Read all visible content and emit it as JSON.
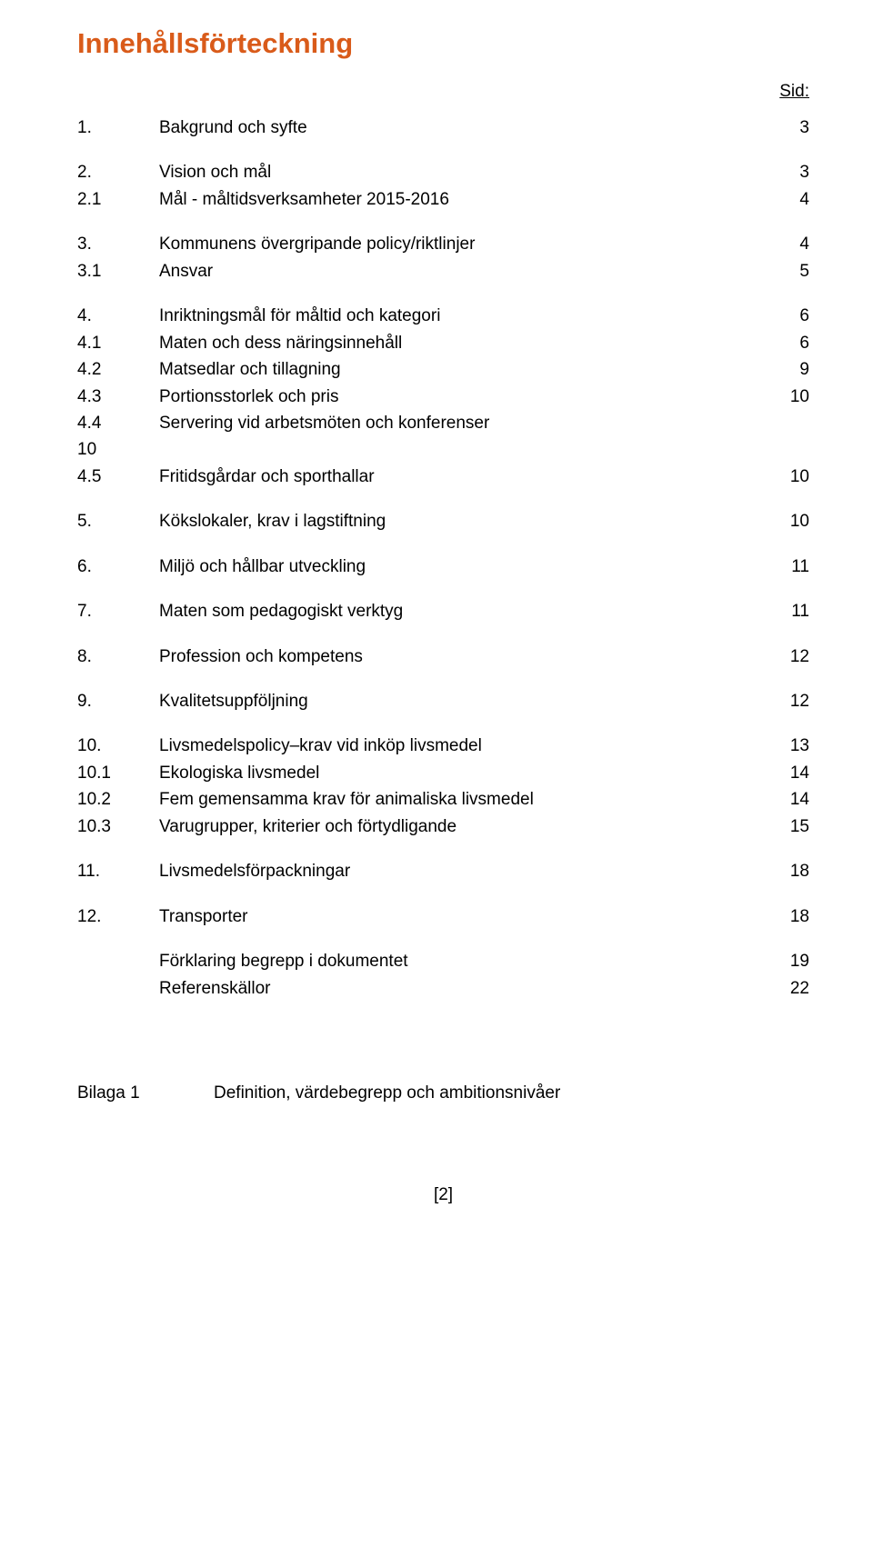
{
  "colors": {
    "accent": "#d95b1a",
    "text": "#000000",
    "background": "#ffffff"
  },
  "typography": {
    "heading_font_size_pt": 24,
    "body_font_size_pt": 14,
    "heading_weight": "bold"
  },
  "heading": "Innehållsförteckning",
  "sid_label": "Sid:",
  "toc": {
    "groups": [
      [
        {
          "num": "1.",
          "title": "Bakgrund och syfte",
          "page": "3"
        }
      ],
      [
        {
          "num": "2.",
          "title": "Vision och mål",
          "page": "3"
        },
        {
          "num": "2.1",
          "title": "Mål - måltidsverksamheter 2015-2016",
          "page": "4"
        }
      ],
      [
        {
          "num": "3.",
          "title": "Kommunens övergripande policy/riktlinjer",
          "page": "4"
        },
        {
          "num": "3.1",
          "title": "Ansvar",
          "page": "5"
        }
      ],
      [
        {
          "num": "4.",
          "title": "Inriktningsmål för måltid och kategori",
          "page": "6"
        },
        {
          "num": "4.1",
          "title": "Maten och dess näringsinnehåll",
          "page": "6"
        },
        {
          "num": "4.2",
          "title": "Matsedlar och tillagning",
          "page": "9"
        },
        {
          "num": "4.3",
          "title": "Portionsstorlek och pris",
          "page": "10"
        },
        {
          "num": "4.4",
          "title": "Servering vid arbetsmöten och konferenser",
          "page": ""
        },
        {
          "num": "10",
          "title": "",
          "page": ""
        },
        {
          "num": "4.5",
          "title": "Fritidsgårdar och sporthallar",
          "page": "10"
        }
      ],
      [
        {
          "num": "5.",
          "title": "Kökslokaler, krav i lagstiftning",
          "page": "10"
        }
      ],
      [
        {
          "num": "6.",
          "title": "Miljö och hållbar utveckling",
          "page": "11"
        }
      ],
      [
        {
          "num": "7.",
          "title": "Maten som pedagogiskt verktyg",
          "page": "11"
        }
      ],
      [
        {
          "num": "8.",
          "title": "Profession och kompetens",
          "page": "12"
        }
      ],
      [
        {
          "num": "9.",
          "title": "Kvalitetsuppföljning",
          "page": "12"
        }
      ],
      [
        {
          "num": "10.",
          "title": "Livsmedelspolicy–krav vid inköp livsmedel",
          "page": "13"
        },
        {
          "num": "10.1",
          "title": "Ekologiska livsmedel",
          "page": "14"
        },
        {
          "num": "10.2",
          "title": "Fem gemensamma krav för animaliska livsmedel",
          "page": "14"
        },
        {
          "num": "10.3",
          "title": "Varugrupper, kriterier och förtydligande",
          "page": "15"
        }
      ],
      [
        {
          "num": "11.",
          "title": "Livsmedelsförpackningar",
          "page": "18"
        }
      ],
      [
        {
          "num": "12.",
          "title": "Transporter",
          "page": "18"
        }
      ],
      [
        {
          "num": "",
          "title": "Förklaring begrepp i dokumentet",
          "page": "19"
        },
        {
          "num": "",
          "title": "Referenskällor",
          "page": "22"
        }
      ]
    ]
  },
  "bilaga": {
    "label": "Bilaga 1",
    "title": "Definition, värdebegrepp och ambitionsnivåer"
  },
  "footer": "[2]"
}
